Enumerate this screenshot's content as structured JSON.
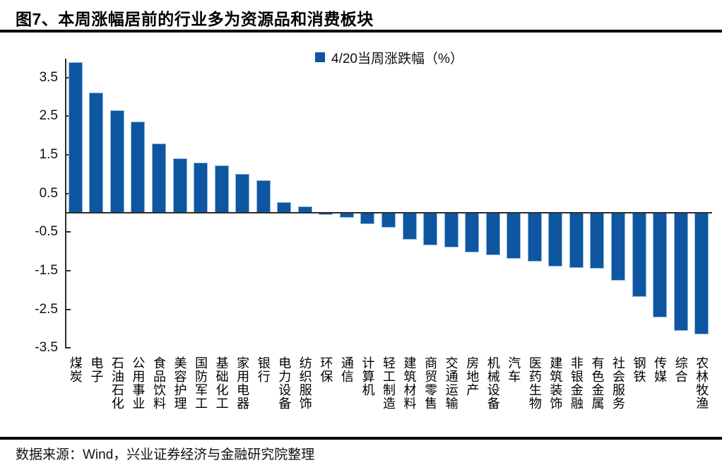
{
  "title": "图7、本周涨幅居前的行业多为资源品和消费板块",
  "footer": {
    "source_text": "数据来源：Wind，兴业证券经济与金融研究院整理"
  },
  "colors": {
    "bar": "#0e56a0",
    "bar_edge": "#8ab6e2",
    "axis": "#2e2e2e",
    "rule": "#000000"
  },
  "chart_data": {
    "type": "bar",
    "title": "图7、本周涨幅居前的行业多为资源品和消费板块",
    "legend": {
      "label": "4/20当周涨跌幅（%）",
      "position": "top-center"
    },
    "xlabel": "",
    "ylabel": "",
    "ylim": [
      -3.5,
      4.0
    ],
    "grid": false,
    "yticks": [
      {
        "value": 3.5,
        "label": "3.5"
      },
      {
        "value": 2.5,
        "label": "2.5"
      },
      {
        "value": 1.5,
        "label": "1.5"
      },
      {
        "value": 0.5,
        "label": "0.5"
      },
      {
        "value": -0.5,
        "label": "-0.5"
      },
      {
        "value": -1.5,
        "label": "-1.5"
      },
      {
        "value": -2.5,
        "label": "-2.5"
      },
      {
        "value": -3.5,
        "label": "-3.5"
      }
    ],
    "categories": [
      "煤炭",
      "电子",
      "石油石化",
      "公用事业",
      "食品饮料",
      "美容护理",
      "国防军工",
      "基础化工",
      "家用电器",
      "银行",
      "电力设备",
      "纺织服饰",
      "环保",
      "通信",
      "计算机",
      "轻工制造",
      "建筑材料",
      "商贸零售",
      "交通运输",
      "房地产",
      "机械设备",
      "汽车",
      "医药生物",
      "建筑装饰",
      "非银金融",
      "有色金属",
      "社会服务",
      "钢铁",
      "传媒",
      "综合",
      "农林牧渔"
    ],
    "values": [
      3.9,
      3.1,
      2.65,
      2.35,
      1.8,
      1.4,
      1.3,
      1.22,
      1.0,
      0.85,
      0.27,
      0.17,
      -0.05,
      -0.12,
      -0.29,
      -0.39,
      -0.7,
      -0.85,
      -0.9,
      -1.03,
      -1.1,
      -1.19,
      -1.26,
      -1.39,
      -1.43,
      -1.45,
      -1.76,
      -2.18,
      -2.7,
      -3.05,
      -3.15
    ]
  }
}
